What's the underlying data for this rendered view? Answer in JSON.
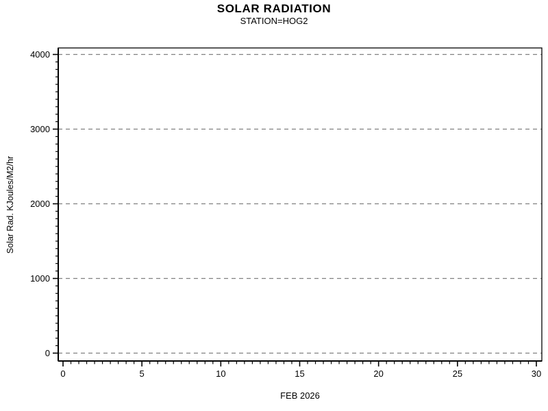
{
  "chart_data": {
    "type": "line",
    "title": "SOLAR RADIATION",
    "subtitle": "STATION=HOG2",
    "xlabel": "FEB 2026",
    "ylabel": "Solar Rad. KJoules/M2/hr",
    "xlim": [
      0,
      30
    ],
    "ylim": [
      0,
      4000
    ],
    "x_major_ticks": [
      0,
      5,
      10,
      15,
      20,
      25,
      30
    ],
    "x_minor_step": 0.5,
    "y_major_ticks": [
      0,
      1000,
      2000,
      3000,
      4000
    ],
    "y_minor_step": 100,
    "grid": {
      "horizontal": true,
      "vertical": false,
      "style": "dashed"
    },
    "legend": "none",
    "series": [],
    "colors": {
      "axis": "#000000",
      "text": "#000000",
      "gridline": "#808080",
      "background": "#ffffff"
    }
  }
}
